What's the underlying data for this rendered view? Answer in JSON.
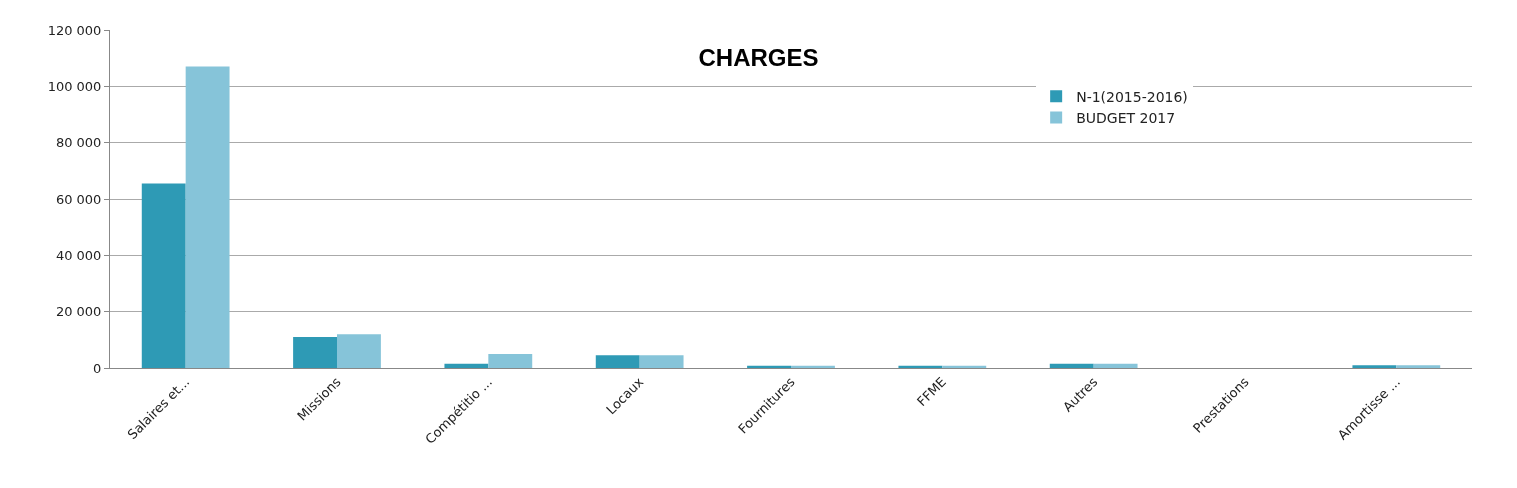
{
  "chart_data": {
    "type": "bar",
    "title": "CHARGES",
    "categories": [
      "Salaires et...",
      "Missions",
      "Compétitio ...",
      "Locaux",
      "Fournitures",
      "FFME",
      "Autres",
      "Prestations",
      "Amortisse ..."
    ],
    "series": [
      {
        "name": "N-1(2015-2016)",
        "color": "#2e9ab5",
        "values": [
          65500,
          11000,
          1500,
          4500,
          800,
          800,
          1500,
          0,
          1000
        ]
      },
      {
        "name": "BUDGET 2017",
        "color": "#86c4d9",
        "values": [
          107000,
          12000,
          5000,
          4500,
          800,
          800,
          1500,
          0,
          1000
        ]
      }
    ],
    "ylim": [
      0,
      120000
    ],
    "yticks": [
      {
        "value": 0,
        "label": "0"
      },
      {
        "value": 20000,
        "label": "20 000"
      },
      {
        "value": 40000,
        "label": "40 000"
      },
      {
        "value": 60000,
        "label": "60 000"
      },
      {
        "value": 80000,
        "label": "80 000"
      },
      {
        "value": 100000,
        "label": "100 000"
      },
      {
        "value": 120000,
        "label": "120 000"
      }
    ],
    "grid": "y",
    "legend": "top right"
  }
}
